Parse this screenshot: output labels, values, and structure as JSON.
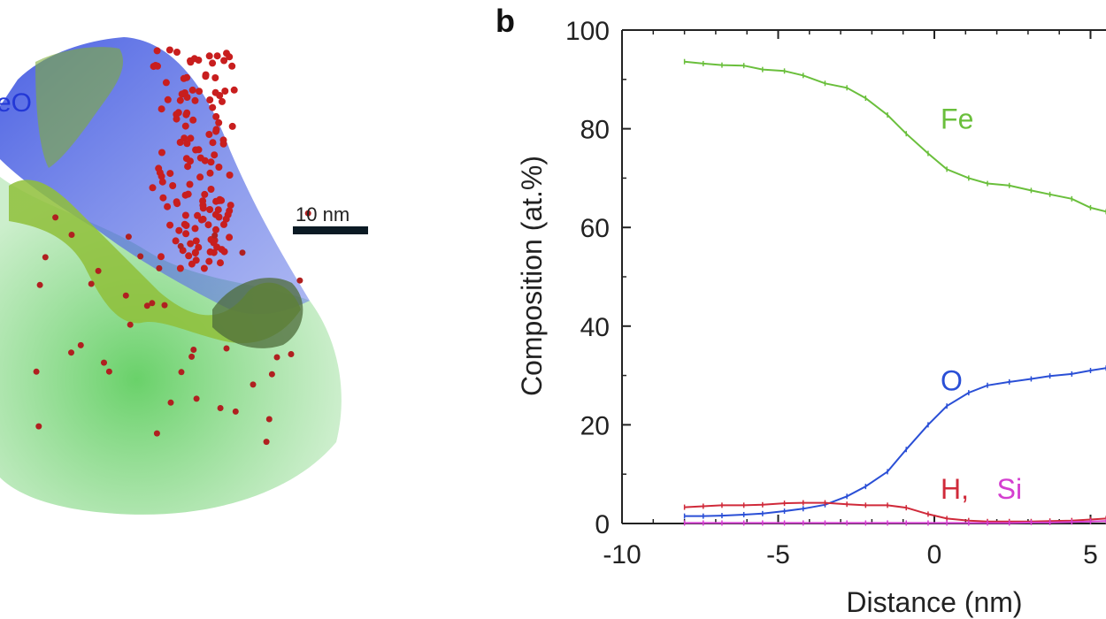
{
  "panel_a": {
    "phase_label": "eO",
    "scale_bar_label": "10 nm",
    "colors": {
      "fe_atoms": "#2fb52f",
      "o_atoms": "#2338d6",
      "h_atoms": "#c81e1e",
      "isosurface": "#8fbf3a"
    }
  },
  "chart_data": {
    "type": "line",
    "panel_label": "b",
    "xlabel": "Distance (nm)",
    "ylabel": "Composition (at.%)",
    "xlim": [
      -10,
      5.5
    ],
    "ylim": [
      0,
      100
    ],
    "xticks": [
      -10,
      -5,
      0,
      5
    ],
    "yticks": [
      0,
      20,
      40,
      60,
      80,
      100
    ],
    "series": [
      {
        "name": "Fe",
        "color": "#6abf3c",
        "x": [
          -8,
          -7.4,
          -6.8,
          -6.1,
          -5.5,
          -4.8,
          -4.2,
          -3.5,
          -2.8,
          -2.2,
          -1.5,
          -0.9,
          -0.2,
          0.4,
          1.1,
          1.7,
          2.4,
          3.1,
          3.7,
          4.4,
          5.0,
          5.5
        ],
        "y": [
          93.6,
          93.2,
          92.9,
          92.8,
          92.0,
          91.7,
          90.8,
          89.2,
          88.3,
          86.2,
          82.8,
          79.0,
          75.0,
          71.8,
          70.0,
          68.9,
          68.5,
          67.5,
          66.7,
          65.8,
          64.0,
          63.2
        ]
      },
      {
        "name": "O",
        "color": "#2a4fd6",
        "x": [
          -8,
          -7.4,
          -6.8,
          -6.1,
          -5.5,
          -4.8,
          -4.2,
          -3.5,
          -2.8,
          -2.2,
          -1.5,
          -0.9,
          -0.2,
          0.4,
          1.1,
          1.7,
          2.4,
          3.1,
          3.7,
          4.4,
          5.0,
          5.5
        ],
        "y": [
          1.5,
          1.5,
          1.6,
          1.8,
          2.0,
          2.5,
          3.0,
          3.8,
          5.5,
          7.5,
          10.5,
          15.0,
          20.0,
          23.8,
          26.5,
          28.0,
          28.7,
          29.3,
          29.9,
          30.3,
          31.0,
          31.5
        ]
      },
      {
        "name": "H",
        "color": "#d02a3a",
        "x": [
          -8,
          -7.4,
          -6.8,
          -6.1,
          -5.5,
          -4.8,
          -4.2,
          -3.5,
          -2.8,
          -2.2,
          -1.5,
          -0.9,
          -0.2,
          0.4,
          1.1,
          1.7,
          2.4,
          3.1,
          3.7,
          4.4,
          5.0,
          5.5
        ],
        "y": [
          3.3,
          3.5,
          3.7,
          3.7,
          3.8,
          4.1,
          4.2,
          4.2,
          3.9,
          3.7,
          3.7,
          3.2,
          1.9,
          1.0,
          0.6,
          0.4,
          0.4,
          0.4,
          0.5,
          0.6,
          0.8,
          1.0
        ]
      },
      {
        "name": "Si",
        "color": "#d43fd0",
        "x": [
          -8,
          -7.4,
          -6.8,
          -6.1,
          -5.5,
          -4.8,
          -4.2,
          -3.5,
          -2.8,
          -2.2,
          -1.5,
          -0.9,
          -0.2,
          0.4,
          1.1,
          1.7,
          2.4,
          3.1,
          3.7,
          4.4,
          5.0,
          5.5
        ],
        "y": [
          0.1,
          0.1,
          0.1,
          0.1,
          0.1,
          0.1,
          0.1,
          0.1,
          0.1,
          0.1,
          0.1,
          0.1,
          0.1,
          0.1,
          0.1,
          0.1,
          0.1,
          0.2,
          0.2,
          0.3,
          0.4,
          0.5
        ]
      }
    ],
    "annotations": [
      {
        "text": "Fe",
        "x": 0.2,
        "y": 80,
        "color": "#6abf3c"
      },
      {
        "text": "O",
        "x": 0.2,
        "y": 27,
        "color": "#2a4fd6"
      },
      {
        "text": "H,",
        "x": 0.2,
        "y": 5,
        "color": "#d02a3a"
      },
      {
        "text": "Si",
        "x": 2.0,
        "y": 5,
        "color": "#d43fd0"
      }
    ],
    "grid": false,
    "legend": "none"
  }
}
